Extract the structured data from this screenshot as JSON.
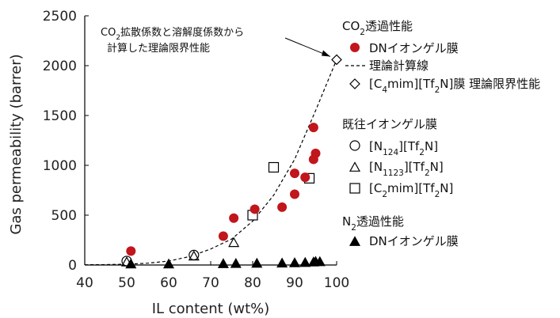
{
  "chart_data": {
    "type": "scatter",
    "xlabel": "IL content (wt%)",
    "ylabel": "Gas permeability (barrer)",
    "xlim": [
      40,
      100
    ],
    "ylim": [
      0,
      2500
    ],
    "xticks": [
      40,
      50,
      60,
      70,
      80,
      90,
      100
    ],
    "yticks": [
      0,
      500,
      1000,
      1500,
      2000,
      2500
    ],
    "grid": false,
    "annotation": {
      "line1_pre": "CO",
      "line1_sub": "2",
      "line1_post": "拡散係数と溶解度係数から",
      "line2": "計算した理論限界性能",
      "arrow_to": {
        "x": 100,
        "y": 2060
      }
    },
    "legend": {
      "co2_header_pre": "CO",
      "co2_header_sub": "2",
      "co2_header_post": "透過性能",
      "dn_ionic_label": "DNイオンゲル膜",
      "theory_line_label": "理論計算線",
      "theory_limit": {
        "pre": "[C",
        "sub": "4",
        "post": "mim][Tf",
        "sub2": "2",
        "post2": "N]膜 理論限界性能"
      },
      "existing_header": "既往イオンゲル膜",
      "n124": {
        "pre": "[N",
        "sub": "124",
        "post": "][Tf",
        "sub2": "2",
        "post2": "N]"
      },
      "n1123": {
        "pre": "[N",
        "sub": "1123",
        "post": "][Tf",
        "sub2": "2",
        "post2": "N]"
      },
      "c2mim": {
        "pre": "[C",
        "sub": "2",
        "post": "mim][Tf",
        "sub2": "2",
        "post2": "N]"
      },
      "n2_header_pre": "N",
      "n2_header_sub": "2",
      "n2_header_post": "透過性能",
      "n2_dn_label": "DNイオンゲル膜"
    },
    "colors": {
      "dn_co2": "#c0161c",
      "marker": "#000000"
    },
    "series": [
      {
        "name": "DNイオンゲル膜",
        "marker": "filled-circle",
        "x": [
          51,
          73,
          75.5,
          80.5,
          87,
          90,
          90,
          92.5,
          94.5,
          95,
          94.5
        ],
        "y": [
          140,
          290,
          470,
          560,
          580,
          710,
          920,
          880,
          1060,
          1120,
          1380
        ]
      },
      {
        "name": "理論計算線",
        "marker": "dashed-line",
        "x": [
          40,
          45,
          50,
          55,
          60,
          65,
          70,
          75,
          80,
          85,
          90,
          95,
          100
        ],
        "y": [
          2,
          4,
          8,
          18,
          40,
          85,
          160,
          260,
          440,
          700,
          1060,
          1550,
          2060
        ]
      },
      {
        "name": "[C4mim][Tf2N]膜 理論限界性能",
        "marker": "open-diamond",
        "x": [
          100
        ],
        "y": [
          2060
        ]
      },
      {
        "name": "[N124][Tf2N]",
        "marker": "open-circle",
        "x": [
          50,
          66
        ],
        "y": [
          40,
          100
        ]
      },
      {
        "name": "[N1123][Tf2N]",
        "marker": "open-triangle",
        "x": [
          50,
          66,
          75.5
        ],
        "y": [
          25,
          85,
          220
        ]
      },
      {
        "name": "[C2mim][Tf2N]",
        "marker": "open-square",
        "x": [
          80,
          85,
          93.5
        ],
        "y": [
          500,
          980,
          870
        ]
      },
      {
        "name": "DNイオンゲル膜 (N2)",
        "marker": "filled-triangle",
        "x": [
          51,
          60,
          73,
          76,
          81,
          87,
          90,
          92.5,
          94.5,
          95,
          96
        ],
        "y": [
          5,
          5,
          8,
          10,
          12,
          14,
          17,
          20,
          25,
          30,
          28
        ]
      }
    ]
  }
}
